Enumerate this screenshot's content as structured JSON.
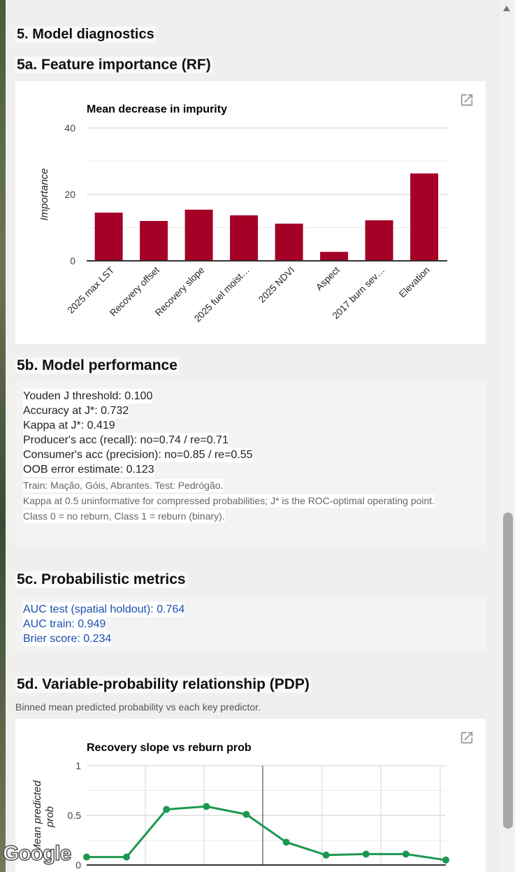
{
  "headings": {
    "section": "5. Model diagnostics",
    "feature_importance": "5a. Feature importance (RF)",
    "performance": "5b. Model performance",
    "probabilistic": "5c. Probabilistic metrics",
    "pdp": "5d. Variable-probability relationship (PDP)",
    "pdp_subtitle": "Binned mean predicted probability vs each key predictor."
  },
  "performance": {
    "lines": [
      "Youden J threshold: 0.100",
      "Accuracy at J*: 0.732",
      "Kappa at J*: 0.419",
      "Producer's acc (recall): no=0.74 / re=0.71",
      "Consumer's acc (precision): no=0.85 / re=0.55",
      "OOB error estimate: 0.123"
    ],
    "notes": [
      "Train: Mação, Góis, Abrantes. Test: Pedrógão.",
      "Kappa at 0.5 uninformative for compressed probabilities; J* is the ROC-optimal operating point.",
      "Class 0 = no reburn, Class 1 = reburn (binary)."
    ]
  },
  "probabilistic": {
    "lines": [
      "AUC test (spatial holdout): 0.764",
      "AUC train: 0.949",
      "Brier score: 0.234"
    ]
  },
  "icons": {
    "popout": "open-in-new-icon",
    "scroll_up": "arrow-up-icon"
  },
  "map_logo": "Google",
  "chart_data": [
    {
      "type": "bar",
      "title": "Mean decrease in impurity",
      "ylabel": "Importance",
      "xlabel": "",
      "categories": [
        "2025 max LST",
        "Recovery offset",
        "Recovery slope",
        "2025 fuel moist…",
        "2025 NDVI",
        "Aspect",
        "2017 burn sev…",
        "Elevation"
      ],
      "values": [
        14.5,
        12.0,
        15.4,
        13.7,
        11.2,
        2.7,
        12.2,
        26.3
      ],
      "ylim": [
        0,
        40
      ],
      "yticks": [
        "0",
        "20",
        "40"
      ],
      "grid": true,
      "color": "#a50026"
    },
    {
      "type": "line",
      "title": "Recovery slope vs reburn prob",
      "ylabel": "Mean predicted prob",
      "values": [
        0.08,
        0.08,
        0.56,
        0.59,
        0.51,
        0.23,
        0.1,
        0.11,
        0.11,
        0.05
      ],
      "ylim": [
        0,
        1
      ],
      "yticks": [
        "0",
        "0.5",
        "1"
      ],
      "grid": true,
      "color": "#1a9850"
    }
  ]
}
